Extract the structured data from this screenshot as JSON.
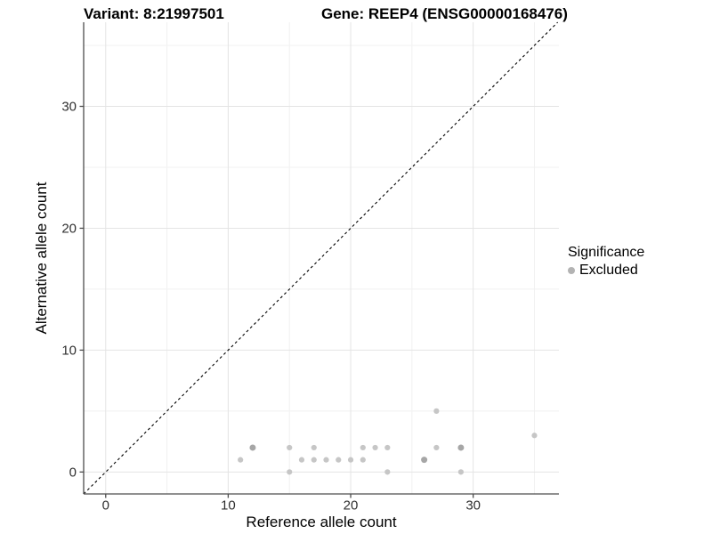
{
  "titles": {
    "variant": "Variant: 8:21997501",
    "gene": "Gene: REEP4 (ENSG00000168476)"
  },
  "legend": {
    "title": "Significance",
    "entries": [
      {
        "label": "Excluded",
        "color": "#b3b3b3"
      }
    ]
  },
  "axes": {
    "x": {
      "label": "Reference allele count",
      "ticks": [
        0,
        10,
        20,
        30
      ],
      "minor": [
        5,
        15,
        25,
        35
      ]
    },
    "y": {
      "label": "Alternative allele count",
      "ticks": [
        0,
        10,
        20,
        30
      ],
      "minor": [
        5,
        15,
        25,
        35
      ]
    }
  },
  "chart_data": {
    "type": "scatter",
    "title": "Variant: 8:21997501 — Gene: REEP4 (ENSG00000168476)",
    "xlabel": "Reference allele count",
    "ylabel": "Alternative allele count",
    "xlim": [
      -1.8,
      37.0
    ],
    "ylim": [
      -1.8,
      36.9
    ],
    "grid": true,
    "identity_line": {
      "shown": true,
      "style": "dashed",
      "equation": "y = x"
    },
    "legend_position": "right",
    "series": [
      {
        "name": "Excluded",
        "points": [
          [
            11,
            1
          ],
          [
            12,
            2
          ],
          [
            15,
            0
          ],
          [
            15,
            2
          ],
          [
            16,
            1
          ],
          [
            17,
            1
          ],
          [
            17,
            2
          ],
          [
            18,
            1
          ],
          [
            19,
            1
          ],
          [
            20,
            1
          ],
          [
            21,
            1
          ],
          [
            21,
            2
          ],
          [
            22,
            2
          ],
          [
            23,
            0
          ],
          [
            23,
            2
          ],
          [
            26,
            1
          ],
          [
            27,
            2
          ],
          [
            27,
            5
          ],
          [
            29,
            0
          ],
          [
            29,
            2
          ],
          [
            35,
            3
          ]
        ],
        "overplotted_points": [
          [
            12,
            2
          ],
          [
            26,
            1
          ],
          [
            29,
            2
          ]
        ]
      }
    ]
  },
  "colors": {
    "point": "#c6c6c6",
    "point_overlap": "#a6a6a6",
    "legend_key": "#b3b3b3",
    "grid_major": "#e4e4e4",
    "grid_minor": "#f1f1f1",
    "axis_line": "#4d4d4d",
    "identity_line": "#000000",
    "tick_text": "#303030"
  }
}
